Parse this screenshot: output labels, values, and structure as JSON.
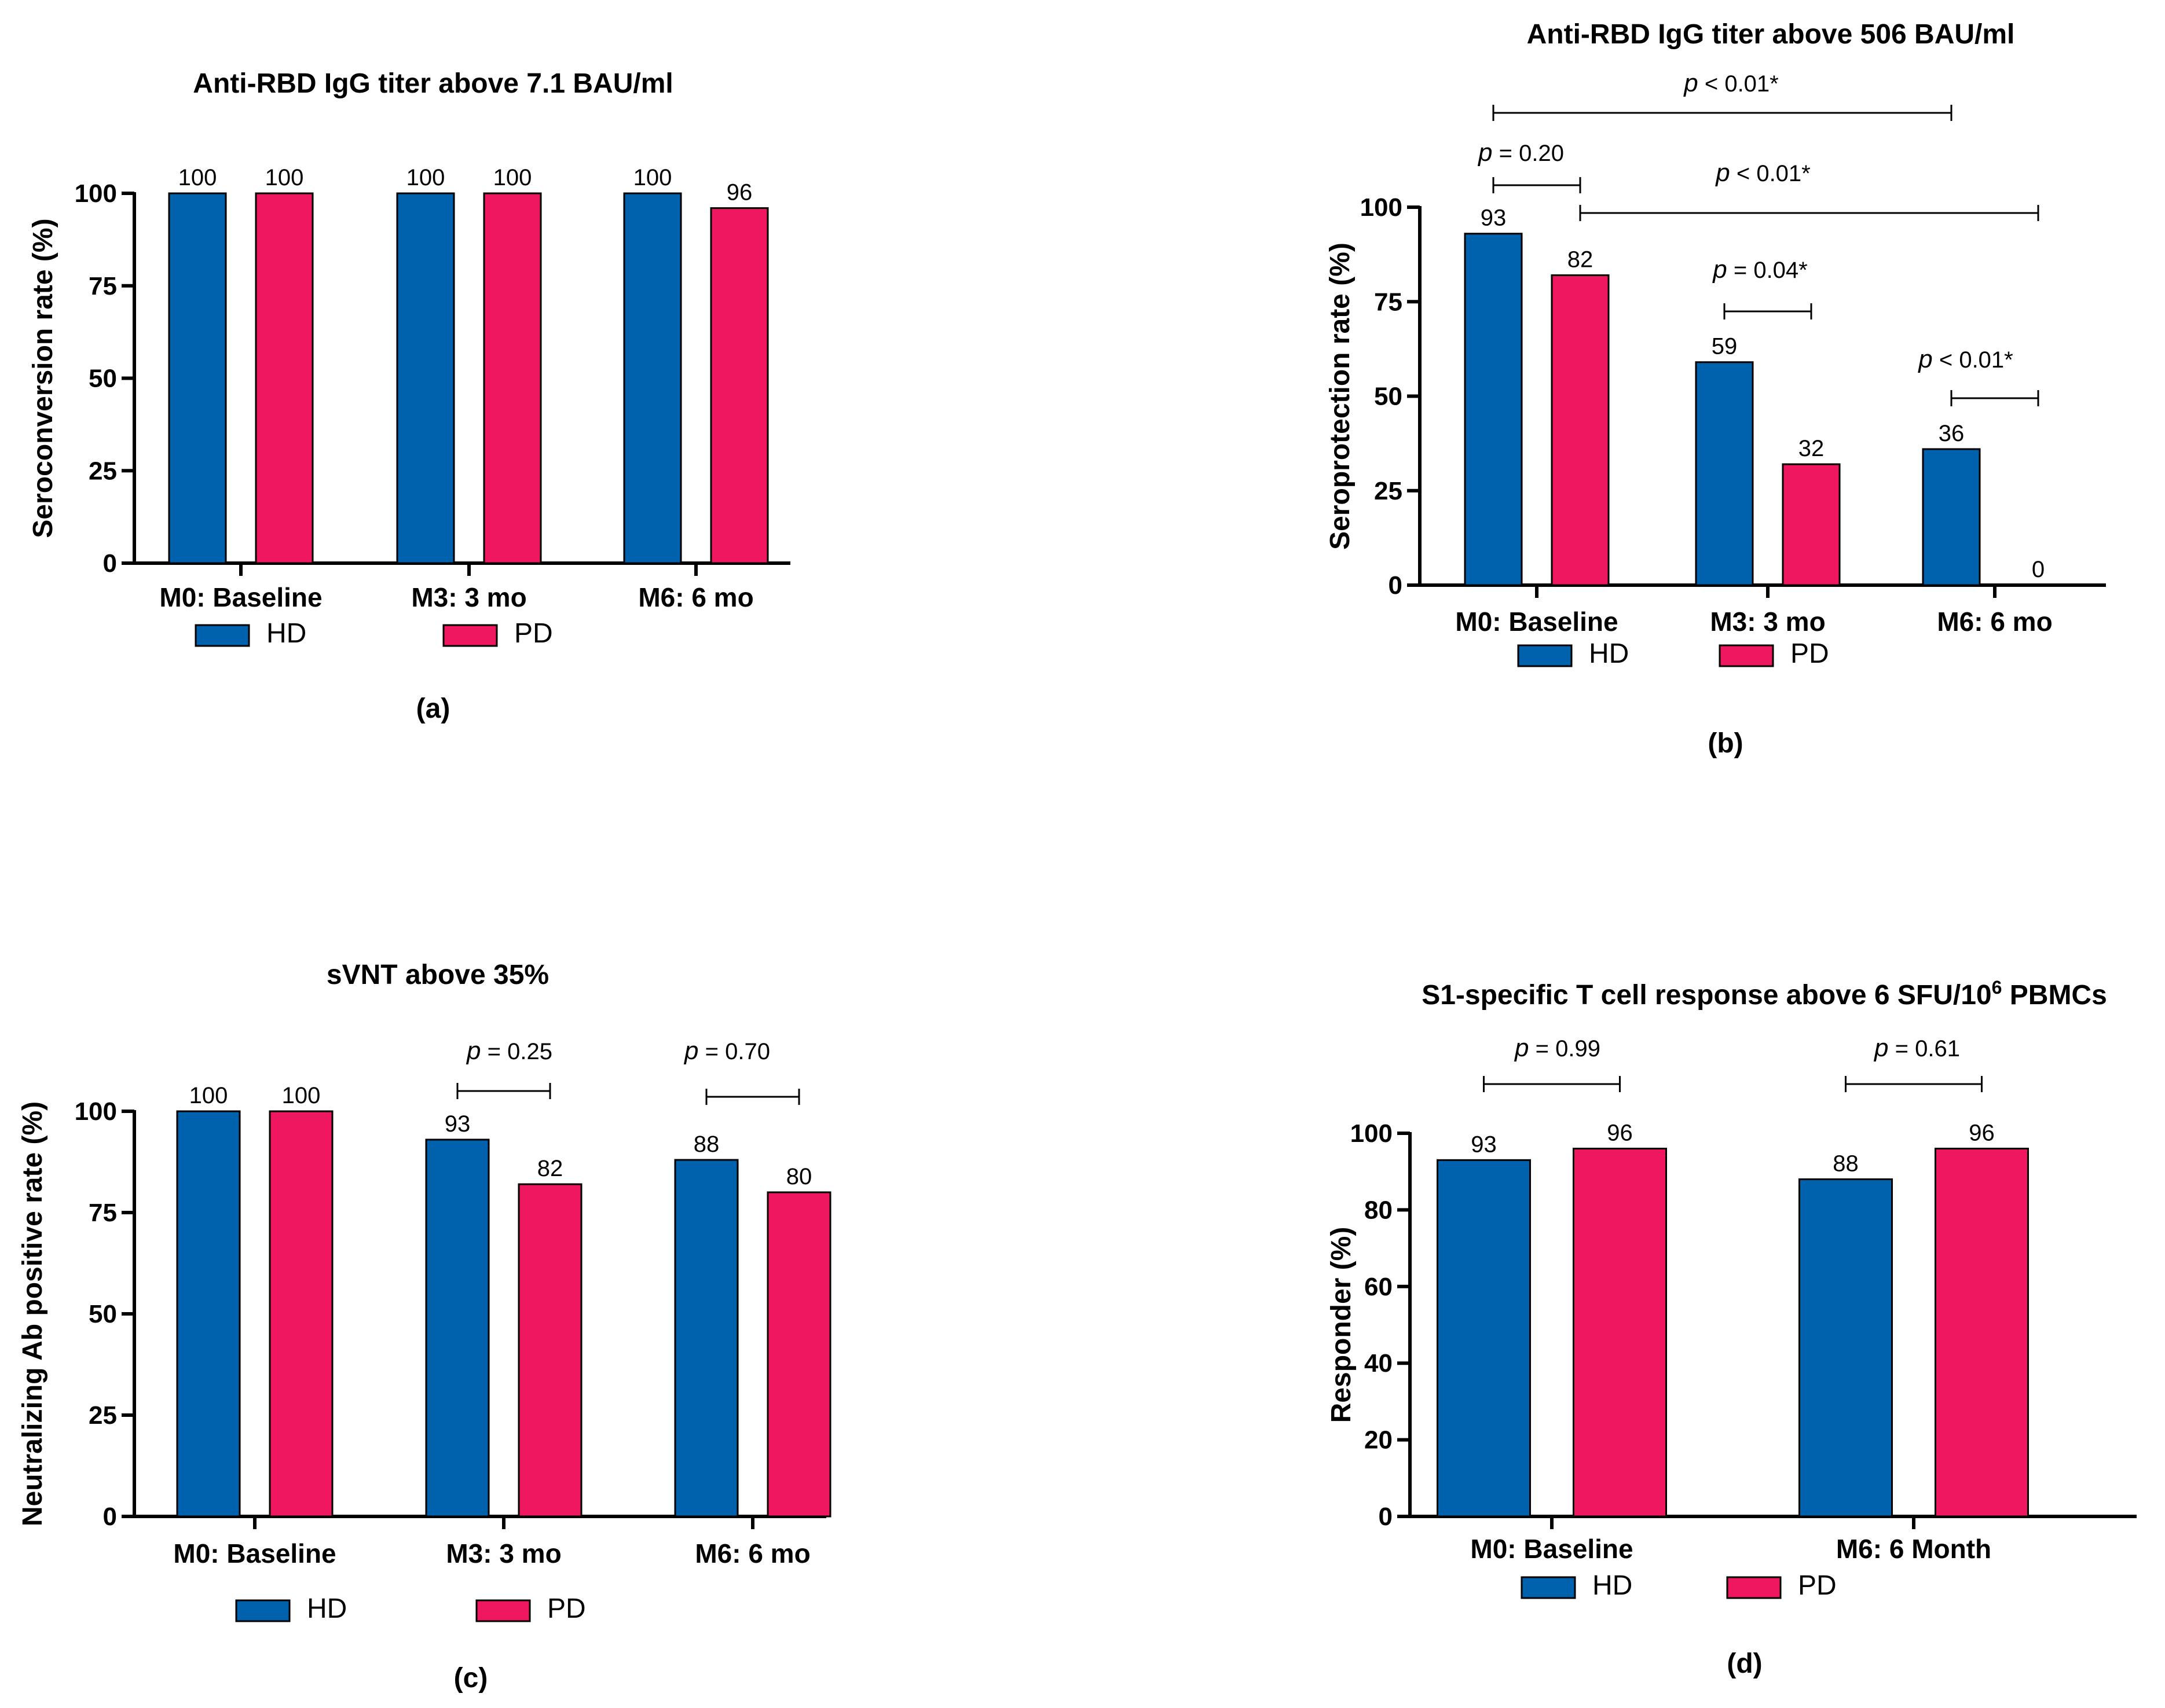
{
  "colors": {
    "HD": "#0062ad",
    "PD": "#ef1860"
  },
  "chart_data": [
    {
      "id": "a",
      "type": "bar",
      "title": "Anti-RBD IgG titer above 7.1 BAU/ml",
      "ylabel": "Seroconversion rate (%)",
      "xlabel": "",
      "panel_label": "(a)",
      "categories": [
        "M0: Baseline",
        "M3: 3 mo",
        "M6: 6 mo"
      ],
      "series": [
        {
          "name": "HD",
          "values": [
            100,
            100,
            100
          ]
        },
        {
          "name": "PD",
          "values": [
            100,
            100,
            96
          ]
        }
      ],
      "data_labels": [
        [
          "100",
          "100"
        ],
        [
          "100",
          "100"
        ],
        [
          "100",
          "96"
        ]
      ],
      "ylim": [
        0,
        100
      ],
      "yticks": [
        0,
        25,
        50,
        75,
        100
      ],
      "legend": [
        "HD",
        "PD"
      ],
      "legend_position": "bottom",
      "grid": false,
      "annotations": []
    },
    {
      "id": "b",
      "type": "bar",
      "title": "Anti-RBD IgG titer above 506 BAU/ml",
      "ylabel": "Seroprotection rate (%)",
      "xlabel": "",
      "panel_label": "(b)",
      "categories": [
        "M0: Baseline",
        "M3: 3 mo",
        "M6: 6 mo"
      ],
      "series": [
        {
          "name": "HD",
          "values": [
            93,
            59,
            36
          ]
        },
        {
          "name": "PD",
          "values": [
            82,
            32,
            0
          ]
        }
      ],
      "data_labels": [
        [
          "93",
          "82"
        ],
        [
          "59",
          "32"
        ],
        [
          "36",
          "0"
        ]
      ],
      "ylim": [
        0,
        100
      ],
      "yticks": [
        0,
        25,
        50,
        75,
        100
      ],
      "legend": [
        "HD",
        "PD"
      ],
      "legend_position": "bottom",
      "grid": false,
      "annotations": [
        {
          "p": "p",
          "text": " < 0.01*",
          "from": [
            0,
            0
          ],
          "to": [
            2,
            0
          ]
        },
        {
          "p": "p",
          "text": " = 0.20",
          "from": [
            0,
            0
          ],
          "to": [
            0,
            1
          ]
        },
        {
          "p": "p",
          "text": " < 0.01*",
          "from": [
            0,
            1
          ],
          "to": [
            2,
            1
          ]
        },
        {
          "p": "p",
          "text": " = 0.04*",
          "from": [
            1,
            0
          ],
          "to": [
            1,
            1
          ]
        },
        {
          "p": "p",
          "text": " < 0.01*",
          "from": [
            2,
            0
          ],
          "to": [
            2,
            1
          ]
        }
      ]
    },
    {
      "id": "c",
      "type": "bar",
      "title": "sVNT above 35%",
      "ylabel": "Neutralizing Ab positive rate (%)",
      "xlabel": "",
      "panel_label": "(c)",
      "categories": [
        "M0: Baseline",
        "M3: 3 mo",
        "M6: 6 mo"
      ],
      "series": [
        {
          "name": "HD",
          "values": [
            100,
            93,
            88
          ]
        },
        {
          "name": "PD",
          "values": [
            100,
            82,
            80
          ]
        }
      ],
      "data_labels": [
        [
          "100",
          "100"
        ],
        [
          "93",
          "82"
        ],
        [
          "88",
          "80"
        ]
      ],
      "ylim": [
        0,
        100
      ],
      "yticks": [
        0,
        25,
        50,
        75,
        100
      ],
      "legend": [
        "HD",
        "PD"
      ],
      "legend_position": "bottom",
      "grid": false,
      "annotations": [
        {
          "p": "p",
          "text": " = 0.25",
          "from": [
            1,
            0
          ],
          "to": [
            1,
            1
          ]
        },
        {
          "p": "p",
          "text": " = 0.70",
          "from": [
            2,
            0
          ],
          "to": [
            2,
            1
          ]
        }
      ]
    },
    {
      "id": "d",
      "type": "bar",
      "title": "S1-specific T cell response above 6 SFU/10",
      "title_sup": "6",
      "title_tail": " PBMCs",
      "ylabel": "Responder (%)",
      "xlabel": "",
      "panel_label": "(d)",
      "categories": [
        "M0: Baseline",
        "M6: 6 Month"
      ],
      "series": [
        {
          "name": "HD",
          "values": [
            93,
            88
          ]
        },
        {
          "name": "PD",
          "values": [
            96,
            96
          ]
        }
      ],
      "data_labels": [
        [
          "93",
          "96"
        ],
        [
          "88",
          "96"
        ]
      ],
      "ylim": [
        0,
        100
      ],
      "yticks": [
        0,
        20,
        40,
        60,
        80,
        100
      ],
      "legend": [
        "HD",
        "PD"
      ],
      "legend_position": "bottom",
      "grid": false,
      "annotations": [
        {
          "p": "p",
          "text": " = 0.99",
          "from": [
            0,
            0
          ],
          "to": [
            0,
            1
          ]
        },
        {
          "p": "p",
          "text": " = 0.61",
          "from": [
            1,
            0
          ],
          "to": [
            1,
            1
          ]
        }
      ]
    }
  ]
}
